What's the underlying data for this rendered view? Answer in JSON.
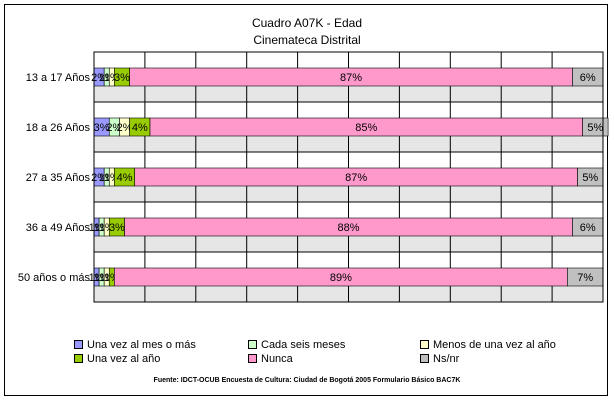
{
  "chart_data": {
    "type": "bar",
    "stacked": true,
    "orientation": "horizontal",
    "title": "Cuadro A07K - Edad",
    "subtitle": "Cinemateca Distrital",
    "categories": [
      "13 a 17 Años",
      "18 a 26 Años",
      "27 a 35 Años",
      "36 a 49 Años",
      "50 años o más"
    ],
    "xlim": [
      0,
      100
    ],
    "grid": true,
    "legend_position": "bottom",
    "series": [
      {
        "name": "Una vez al mes o más",
        "color": "#9999ff",
        "values": [
          2,
          3,
          2,
          1,
          1
        ],
        "labels": [
          "2%",
          "3%",
          "2%",
          "1%",
          "1%"
        ]
      },
      {
        "name": "Cada seis meses",
        "color": "#ccffcc",
        "values": [
          1,
          2,
          1,
          1,
          1
        ],
        "labels": [
          "1%",
          "2%",
          "1%",
          "1%",
          "1%"
        ]
      },
      {
        "name": "Menos de una vez al año",
        "color": "#ffffcc",
        "values": [
          1,
          2,
          1,
          1,
          1
        ],
        "labels": [
          "1%",
          "2%",
          "1%",
          "1%",
          "1%"
        ]
      },
      {
        "name": "Una vez al año",
        "color": "#99cc00",
        "values": [
          3,
          4,
          4,
          3,
          1
        ],
        "labels": [
          "3%",
          "4%",
          "4%",
          "3%",
          "1%"
        ]
      },
      {
        "name": "Nunca",
        "color": "#ff99cc",
        "values": [
          87,
          85,
          87,
          88,
          89
        ],
        "labels": [
          "87%",
          "85%",
          "87%",
          "88%",
          "89%"
        ]
      },
      {
        "name": "Ns/nr",
        "color": "#c0c0c0",
        "values": [
          6,
          5,
          5,
          6,
          7
        ],
        "labels": [
          "6%",
          "5%",
          "5%",
          "6%",
          "7%"
        ]
      }
    ]
  },
  "source": "Fuente: IDCT-OCUB Encuesta de Cultura: Ciudad de Bogotá 2005 Formulario Básico BAC7K"
}
